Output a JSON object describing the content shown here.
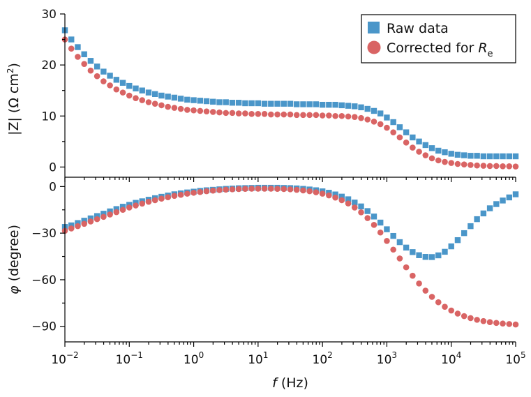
{
  "colors": {
    "raw": "#4a96c9",
    "corrected": "#d96464"
  },
  "chart_data": [
    {
      "type": "scatter",
      "panel": "top",
      "ylabel": "|Z| (Ω cm²)",
      "ylabel_parts": {
        "main": "|Z| (Ω cm",
        "sup": "2",
        "close": ")"
      },
      "xscale": "log",
      "xlim_log10": [
        -2,
        5
      ],
      "ylim": [
        -2,
        30
      ],
      "yticks": [
        0,
        10,
        20,
        30
      ],
      "yticks_labels": [
        "0",
        "10",
        "20",
        "30"
      ],
      "legend": {
        "position": "top-right",
        "entries": [
          {
            "series": "raw",
            "label": "Raw data",
            "marker": "square"
          },
          {
            "series": "corrected",
            "label_main": "Corrected for ",
            "label_italic": "R",
            "label_sub": "e",
            "marker": "circle"
          }
        ]
      },
      "series": [
        {
          "name": "raw",
          "x_log10": [
            -2.0,
            -1.9,
            -1.8,
            -1.7,
            -1.6,
            -1.5,
            -1.4,
            -1.3,
            -1.2,
            -1.1,
            -1.0,
            -0.9,
            -0.8,
            -0.7,
            -0.6,
            -0.5,
            -0.4,
            -0.3,
            -0.2,
            -0.1,
            0.0,
            0.1,
            0.2,
            0.3,
            0.4,
            0.5,
            0.6,
            0.7,
            0.8,
            0.9,
            1.0,
            1.1,
            1.2,
            1.3,
            1.4,
            1.5,
            1.6,
            1.7,
            1.8,
            1.9,
            2.0,
            2.1,
            2.2,
            2.3,
            2.4,
            2.5,
            2.6,
            2.7,
            2.8,
            2.9,
            3.0,
            3.1,
            3.2,
            3.3,
            3.4,
            3.5,
            3.6,
            3.7,
            3.8,
            3.9,
            4.0,
            4.1,
            4.2,
            4.3,
            4.4,
            4.5,
            4.6,
            4.7,
            4.8,
            4.9,
            5.0
          ],
          "y": [
            26.8,
            25.0,
            23.5,
            22.1,
            20.8,
            19.7,
            18.7,
            17.9,
            17.1,
            16.5,
            15.9,
            15.4,
            15.0,
            14.6,
            14.3,
            14.0,
            13.8,
            13.6,
            13.4,
            13.2,
            13.1,
            13.0,
            12.9,
            12.8,
            12.7,
            12.7,
            12.6,
            12.6,
            12.5,
            12.5,
            12.5,
            12.4,
            12.4,
            12.4,
            12.4,
            12.4,
            12.3,
            12.3,
            12.3,
            12.3,
            12.2,
            12.2,
            12.2,
            12.1,
            12.0,
            11.9,
            11.7,
            11.4,
            11.0,
            10.5,
            9.7,
            8.8,
            7.8,
            6.8,
            5.8,
            5.0,
            4.3,
            3.7,
            3.2,
            2.9,
            2.6,
            2.4,
            2.3,
            2.2,
            2.2,
            2.1,
            2.1,
            2.1,
            2.1,
            2.1,
            2.1
          ]
        },
        {
          "name": "corrected",
          "x_log10": [
            -2.0,
            -1.9,
            -1.8,
            -1.7,
            -1.6,
            -1.5,
            -1.4,
            -1.3,
            -1.2,
            -1.1,
            -1.0,
            -0.9,
            -0.8,
            -0.7,
            -0.6,
            -0.5,
            -0.4,
            -0.3,
            -0.2,
            -0.1,
            0.0,
            0.1,
            0.2,
            0.3,
            0.4,
            0.5,
            0.6,
            0.7,
            0.8,
            0.9,
            1.0,
            1.1,
            1.2,
            1.3,
            1.4,
            1.5,
            1.6,
            1.7,
            1.8,
            1.9,
            2.0,
            2.1,
            2.2,
            2.3,
            2.4,
            2.5,
            2.6,
            2.7,
            2.8,
            2.9,
            3.0,
            3.1,
            3.2,
            3.3,
            3.4,
            3.5,
            3.6,
            3.7,
            3.8,
            3.9,
            4.0,
            4.1,
            4.2,
            4.3,
            4.4,
            4.5,
            4.6,
            4.7,
            4.8,
            4.9,
            5.0
          ],
          "y": [
            25.0,
            23.2,
            21.6,
            20.2,
            18.9,
            17.8,
            16.8,
            16.0,
            15.2,
            14.6,
            14.0,
            13.5,
            13.1,
            12.7,
            12.4,
            12.1,
            11.8,
            11.6,
            11.4,
            11.2,
            11.1,
            11.0,
            10.9,
            10.8,
            10.7,
            10.6,
            10.6,
            10.5,
            10.5,
            10.4,
            10.4,
            10.4,
            10.3,
            10.3,
            10.3,
            10.3,
            10.2,
            10.2,
            10.2,
            10.2,
            10.1,
            10.1,
            10.0,
            10.0,
            9.9,
            9.8,
            9.6,
            9.3,
            8.9,
            8.4,
            7.7,
            6.8,
            5.8,
            4.8,
            3.8,
            3.0,
            2.3,
            1.7,
            1.3,
            1.0,
            0.8,
            0.6,
            0.5,
            0.4,
            0.3,
            0.25,
            0.2,
            0.2,
            0.15,
            0.15,
            0.1
          ]
        }
      ]
    },
    {
      "type": "scatter",
      "panel": "bottom",
      "ylabel_symbol": "φ",
      "ylabel_rest": " (degree)",
      "xlabel_symbol": "f",
      "xlabel_rest": " (Hz)",
      "xscale": "log",
      "xlim_log10": [
        -2,
        5
      ],
      "ylim": [
        -100,
        6
      ],
      "yticks": [
        0,
        -30,
        -60,
        -90
      ],
      "yticks_labels": [
        "0",
        "−30",
        "−60",
        "−90"
      ],
      "xticks_log10": [
        -2,
        -1,
        0,
        1,
        2,
        3,
        4,
        5
      ],
      "xticks_labels": [
        "−2",
        "−1",
        "0",
        "1",
        "2",
        "3",
        "4",
        "5"
      ],
      "xticks_base": "10",
      "series": [
        {
          "name": "raw",
          "x_log10": [
            -2.0,
            -1.9,
            -1.8,
            -1.7,
            -1.6,
            -1.5,
            -1.4,
            -1.3,
            -1.2,
            -1.1,
            -1.0,
            -0.9,
            -0.8,
            -0.7,
            -0.6,
            -0.5,
            -0.4,
            -0.3,
            -0.2,
            -0.1,
            0.0,
            0.1,
            0.2,
            0.3,
            0.4,
            0.5,
            0.6,
            0.7,
            0.8,
            0.9,
            1.0,
            1.1,
            1.2,
            1.3,
            1.4,
            1.5,
            1.6,
            1.7,
            1.8,
            1.9,
            2.0,
            2.1,
            2.2,
            2.3,
            2.4,
            2.5,
            2.6,
            2.7,
            2.8,
            2.9,
            3.0,
            3.1,
            3.2,
            3.3,
            3.4,
            3.5,
            3.6,
            3.7,
            3.8,
            3.9,
            4.0,
            4.1,
            4.2,
            4.3,
            4.4,
            4.5,
            4.6,
            4.7,
            4.8,
            4.9,
            5.0
          ],
          "y": [
            -26,
            -25,
            -23.5,
            -22,
            -20.5,
            -19,
            -17.5,
            -16,
            -14.5,
            -13,
            -11.8,
            -10.5,
            -9.5,
            -8.5,
            -7.5,
            -6.6,
            -5.8,
            -5.0,
            -4.4,
            -3.8,
            -3.3,
            -2.8,
            -2.4,
            -2.1,
            -1.8,
            -1.5,
            -1.3,
            -1.1,
            -1.0,
            -0.9,
            -0.8,
            -0.8,
            -0.8,
            -0.8,
            -0.9,
            -1.0,
            -1.2,
            -1.5,
            -1.9,
            -2.4,
            -3.1,
            -4.0,
            -5.1,
            -6.5,
            -8.2,
            -10.3,
            -12.8,
            -15.8,
            -19.3,
            -23.2,
            -27.5,
            -31.8,
            -35.8,
            -39.3,
            -42.2,
            -44.2,
            -45.3,
            -45.4,
            -44.3,
            -42.0,
            -38.5,
            -34.5,
            -30.0,
            -25.5,
            -21.0,
            -17.3,
            -14.0,
            -11.3,
            -9.0,
            -7.0,
            -5.0
          ]
        },
        {
          "name": "corrected",
          "x_log10": [
            -2.0,
            -1.9,
            -1.8,
            -1.7,
            -1.6,
            -1.5,
            -1.4,
            -1.3,
            -1.2,
            -1.1,
            -1.0,
            -0.9,
            -0.8,
            -0.7,
            -0.6,
            -0.5,
            -0.4,
            -0.3,
            -0.2,
            -0.1,
            0.0,
            0.1,
            0.2,
            0.3,
            0.4,
            0.5,
            0.6,
            0.7,
            0.8,
            0.9,
            1.0,
            1.1,
            1.2,
            1.3,
            1.4,
            1.5,
            1.6,
            1.7,
            1.8,
            1.9,
            2.0,
            2.1,
            2.2,
            2.3,
            2.4,
            2.5,
            2.6,
            2.7,
            2.8,
            2.9,
            3.0,
            3.1,
            3.2,
            3.3,
            3.4,
            3.5,
            3.6,
            3.7,
            3.8,
            3.9,
            4.0,
            4.1,
            4.2,
            4.3,
            4.4,
            4.5,
            4.6,
            4.7,
            4.8,
            4.9,
            5.0
          ],
          "y": [
            -28.5,
            -27,
            -25.5,
            -24,
            -22.5,
            -21,
            -19.5,
            -18,
            -16.5,
            -15,
            -13.5,
            -12.2,
            -11,
            -9.8,
            -8.8,
            -7.8,
            -6.9,
            -6.0,
            -5.3,
            -4.6,
            -4.0,
            -3.5,
            -3.0,
            -2.6,
            -2.3,
            -2.0,
            -1.8,
            -1.6,
            -1.5,
            -1.4,
            -1.4,
            -1.4,
            -1.4,
            -1.5,
            -1.6,
            -1.8,
            -2.1,
            -2.5,
            -3.0,
            -3.7,
            -4.6,
            -5.7,
            -7.1,
            -8.8,
            -10.9,
            -13.5,
            -16.6,
            -20.3,
            -24.7,
            -29.6,
            -35.0,
            -40.6,
            -46.3,
            -52.0,
            -57.4,
            -62.4,
            -67.0,
            -71.0,
            -74.5,
            -77.4,
            -79.8,
            -81.8,
            -83.4,
            -84.7,
            -85.8,
            -86.6,
            -87.3,
            -87.8,
            -88.2,
            -88.5,
            -88.8
          ]
        }
      ]
    }
  ]
}
